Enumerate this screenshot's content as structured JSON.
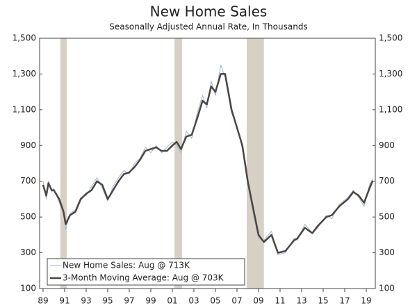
{
  "chart_data": {
    "type": "line",
    "title": "New Home Sales",
    "subtitle": "Seasonally Adjusted Annual Rate, In Thousands",
    "x": [
      1989.0,
      1989.3,
      1989.5,
      1989.8,
      1990.0,
      1990.5,
      1990.9,
      1991.1,
      1991.5,
      1992.0,
      1992.5,
      1993.0,
      1993.5,
      1994.0,
      1994.5,
      1995.0,
      1995.5,
      1996.0,
      1996.5,
      1997.0,
      1997.5,
      1998.0,
      1998.5,
      1999.0,
      1999.5,
      2000.0,
      2000.5,
      2001.0,
      2001.4,
      2001.8,
      2002.3,
      2002.8,
      2003.3,
      2003.8,
      2004.2,
      2004.6,
      2005.0,
      2005.5,
      2005.9,
      2006.5,
      2007.0,
      2007.5,
      2008.0,
      2008.5,
      2009.0,
      2009.5,
      2010.2,
      2010.8,
      2011.5,
      2012.3,
      2012.6,
      2013.3,
      2014.0,
      2014.5,
      2015.3,
      2015.8,
      2016.5,
      2017.3,
      2017.8,
      2018.3,
      2018.8,
      2019.3,
      2019.6
    ],
    "series": [
      {
        "name": "New Home Sales: Aug @ 713K",
        "color": "#9ab8d8",
        "values": [
          700,
          600,
          700,
          640,
          660,
          580,
          520,
          430,
          520,
          540,
          610,
          620,
          670,
          720,
          660,
          590,
          670,
          720,
          760,
          740,
          800,
          830,
          890,
          860,
          900,
          860,
          890,
          920,
          900,
          860,
          980,
          940,
          1080,
          1180,
          1110,
          1260,
          1180,
          1350,
          1280,
          1080,
          1010,
          880,
          680,
          520,
          380,
          370,
          420,
          290,
          300,
          380,
          370,
          460,
          410,
          440,
          510,
          490,
          570,
          610,
          650,
          610,
          560,
          680,
          713
        ]
      },
      {
        "name": "3-Month Moving Average: Aug @ 703K",
        "color": "#4d4540",
        "values": [
          680,
          620,
          690,
          650,
          650,
          600,
          530,
          460,
          510,
          530,
          600,
          630,
          650,
          700,
          680,
          600,
          650,
          700,
          740,
          750,
          780,
          820,
          870,
          880,
          890,
          870,
          870,
          900,
          920,
          880,
          950,
          960,
          1050,
          1150,
          1130,
          1230,
          1200,
          1300,
          1300,
          1100,
          1000,
          900,
          700,
          550,
          400,
          360,
          400,
          300,
          310,
          370,
          380,
          440,
          410,
          450,
          500,
          510,
          560,
          600,
          640,
          620,
          580,
          660,
          703
        ]
      }
    ],
    "xlim": [
      1988.68,
      2019.84
    ],
    "xticks": [
      {
        "value": 1989,
        "label": "89"
      },
      {
        "value": 1991,
        "label": "91"
      },
      {
        "value": 1993,
        "label": "93"
      },
      {
        "value": 1995,
        "label": "95"
      },
      {
        "value": 1997,
        "label": "97"
      },
      {
        "value": 1999,
        "label": "99"
      },
      {
        "value": 2001,
        "label": "01"
      },
      {
        "value": 2003,
        "label": "03"
      },
      {
        "value": 2005,
        "label": "05"
      },
      {
        "value": 2007,
        "label": "07"
      },
      {
        "value": 2009,
        "label": "09"
      },
      {
        "value": 2011,
        "label": "11"
      },
      {
        "value": 2013,
        "label": "13"
      },
      {
        "value": 2015,
        "label": "15"
      },
      {
        "value": 2017,
        "label": "17"
      },
      {
        "value": 2019,
        "label": "19"
      }
    ],
    "ylim": [
      100,
      1500
    ],
    "yticks": [
      100,
      300,
      500,
      700,
      900,
      {
        "value": 1100,
        "label": "1,100"
      },
      {
        "value": 1300,
        "label": "1,300"
      },
      {
        "value": 1500,
        "label": "1,500"
      }
    ],
    "y2lim": [
      100,
      1500
    ],
    "y2ticks": [
      100,
      300,
      500,
      700,
      900,
      {
        "value": 1100,
        "label": "1,100"
      },
      {
        "value": 1300,
        "label": "1,300"
      },
      {
        "value": 1500,
        "label": "1,500"
      }
    ],
    "recessions": [
      [
        1990.6,
        1991.2
      ],
      [
        2001.2,
        2001.9
      ],
      [
        2007.9,
        2009.5
      ]
    ],
    "recession_color": "#d6d1c4",
    "legend": "lower left"
  }
}
